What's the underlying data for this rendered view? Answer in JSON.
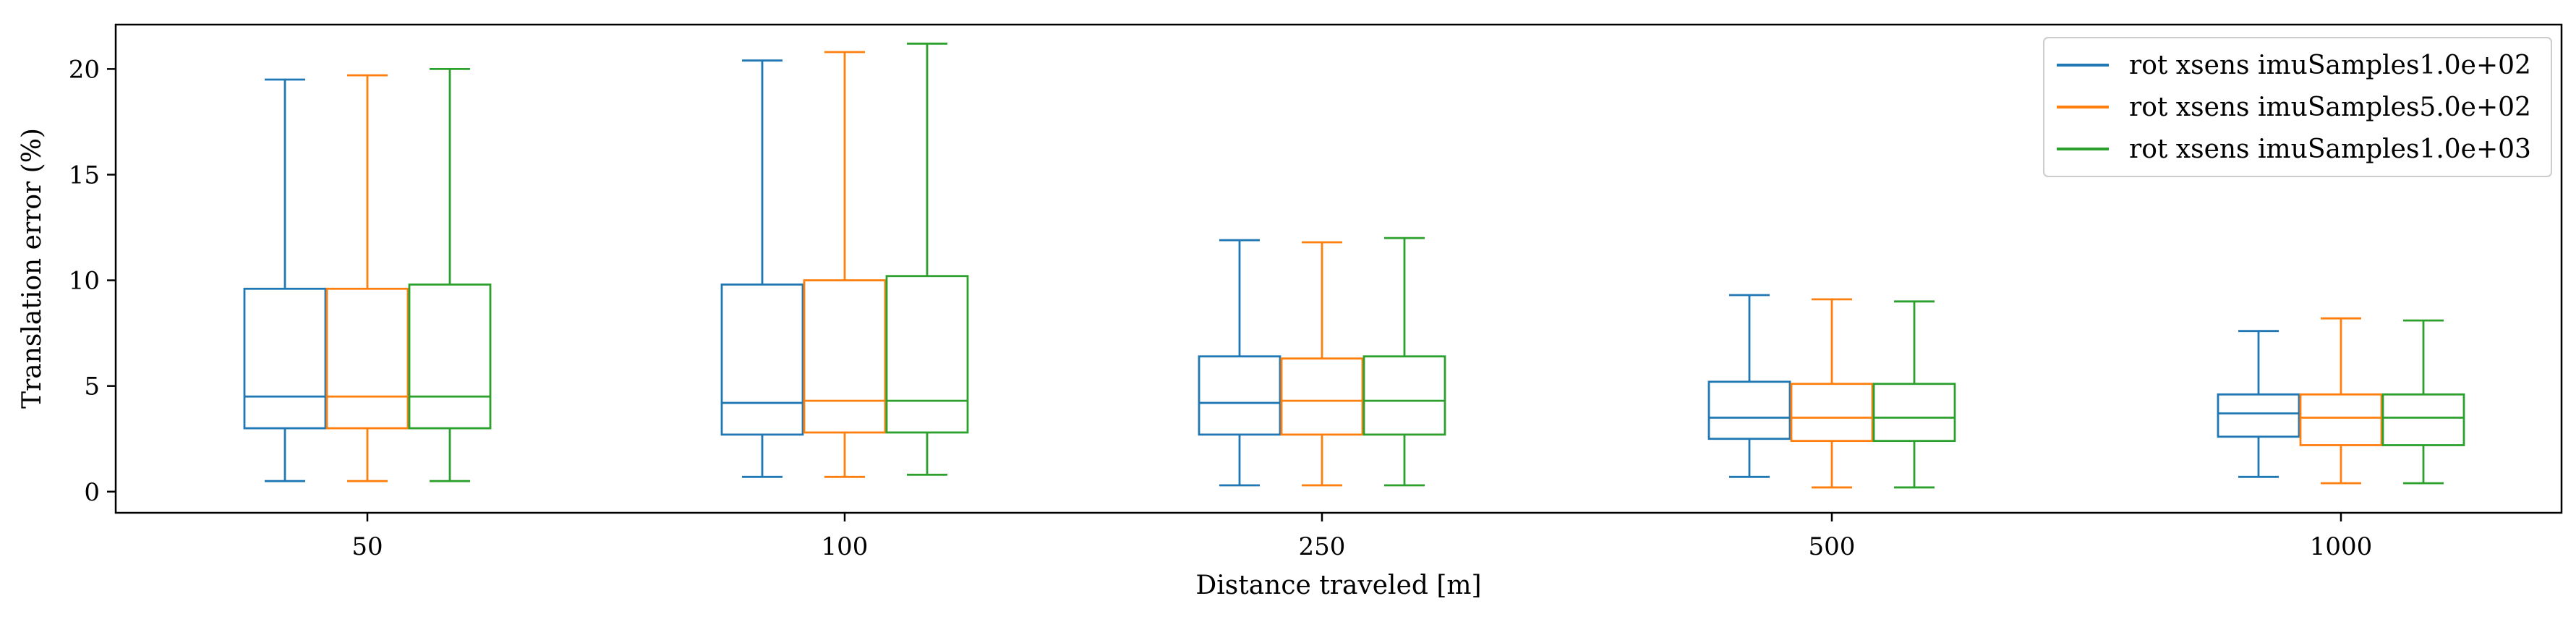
{
  "chart_data": {
    "type": "box",
    "title": "",
    "xlabel": "Distance traveled [m]",
    "ylabel": "Translation error (%)",
    "categories": [
      "50",
      "100",
      "250",
      "500",
      "1000"
    ],
    "yticks": [
      "0",
      "5",
      "10",
      "15",
      "20"
    ],
    "ylim": [
      -1,
      22.1
    ],
    "grid": false,
    "legend_position": "top-right",
    "series": [
      {
        "name": "rot xsens imuSamples1.0e+02",
        "color": "#1f77b4",
        "boxes": [
          {
            "whisker_low": 0.5,
            "q1": 3.0,
            "median": 4.5,
            "q3": 9.6,
            "whisker_high": 19.5
          },
          {
            "whisker_low": 0.7,
            "q1": 2.7,
            "median": 4.2,
            "q3": 9.8,
            "whisker_high": 20.4
          },
          {
            "whisker_low": 0.3,
            "q1": 2.7,
            "median": 4.2,
            "q3": 6.4,
            "whisker_high": 11.9
          },
          {
            "whisker_low": 0.7,
            "q1": 2.5,
            "median": 3.5,
            "q3": 5.2,
            "whisker_high": 9.3
          },
          {
            "whisker_low": 0.7,
            "q1": 2.6,
            "median": 3.7,
            "q3": 4.6,
            "whisker_high": 7.6
          }
        ]
      },
      {
        "name": "rot xsens imuSamples5.0e+02",
        "color": "#ff7f0e",
        "boxes": [
          {
            "whisker_low": 0.5,
            "q1": 3.0,
            "median": 4.5,
            "q3": 9.6,
            "whisker_high": 19.7
          },
          {
            "whisker_low": 0.7,
            "q1": 2.8,
            "median": 4.3,
            "q3": 10.0,
            "whisker_high": 20.8
          },
          {
            "whisker_low": 0.3,
            "q1": 2.7,
            "median": 4.3,
            "q3": 6.3,
            "whisker_high": 11.8
          },
          {
            "whisker_low": 0.2,
            "q1": 2.4,
            "median": 3.5,
            "q3": 5.1,
            "whisker_high": 9.1
          },
          {
            "whisker_low": 0.4,
            "q1": 2.2,
            "median": 3.5,
            "q3": 4.6,
            "whisker_high": 8.2
          }
        ]
      },
      {
        "name": "rot xsens imuSamples1.0e+03",
        "color": "#2ca02c",
        "boxes": [
          {
            "whisker_low": 0.5,
            "q1": 3.0,
            "median": 4.5,
            "q3": 9.8,
            "whisker_high": 20.0
          },
          {
            "whisker_low": 0.8,
            "q1": 2.8,
            "median": 4.3,
            "q3": 10.2,
            "whisker_high": 21.2
          },
          {
            "whisker_low": 0.3,
            "q1": 2.7,
            "median": 4.3,
            "q3": 6.4,
            "whisker_high": 12.0
          },
          {
            "whisker_low": 0.2,
            "q1": 2.4,
            "median": 3.5,
            "q3": 5.1,
            "whisker_high": 9.0
          },
          {
            "whisker_low": 0.4,
            "q1": 2.2,
            "median": 3.5,
            "q3": 4.6,
            "whisker_high": 8.1
          }
        ]
      }
    ]
  }
}
